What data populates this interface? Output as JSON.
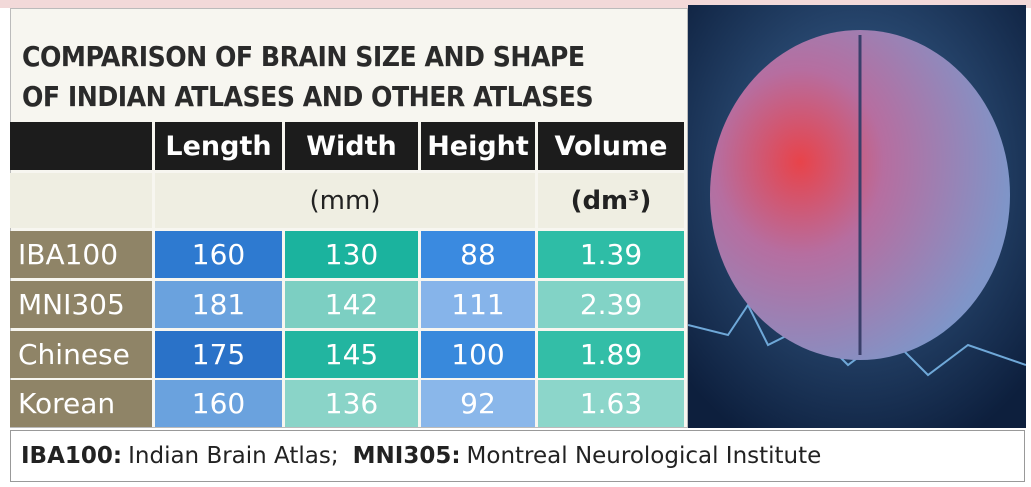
{
  "title": [
    "COMPARISON OF BRAIN SIZE AND SHAPE",
    "OF INDIAN ATLASES AND OTHER ATLASES"
  ],
  "table": {
    "columns": [
      "Length",
      "Width",
      "Height",
      "Volume"
    ],
    "units": {
      "mm": "(mm)",
      "volume": "(dm³)"
    },
    "rows": [
      [
        "IBA100",
        160,
        130,
        88,
        1.39
      ],
      [
        "MNI305",
        181,
        142,
        111,
        2.39
      ],
      [
        "Chinese",
        175,
        145,
        100,
        1.89
      ],
      [
        "Korean",
        160,
        136,
        92,
        1.63
      ]
    ]
  },
  "footer": [
    {
      "term": "IBA100:",
      "definition": "Indian Brain Atlas;"
    },
    {
      "term": "MNI305:",
      "definition": "Montreal Neurological Institute"
    }
  ]
}
